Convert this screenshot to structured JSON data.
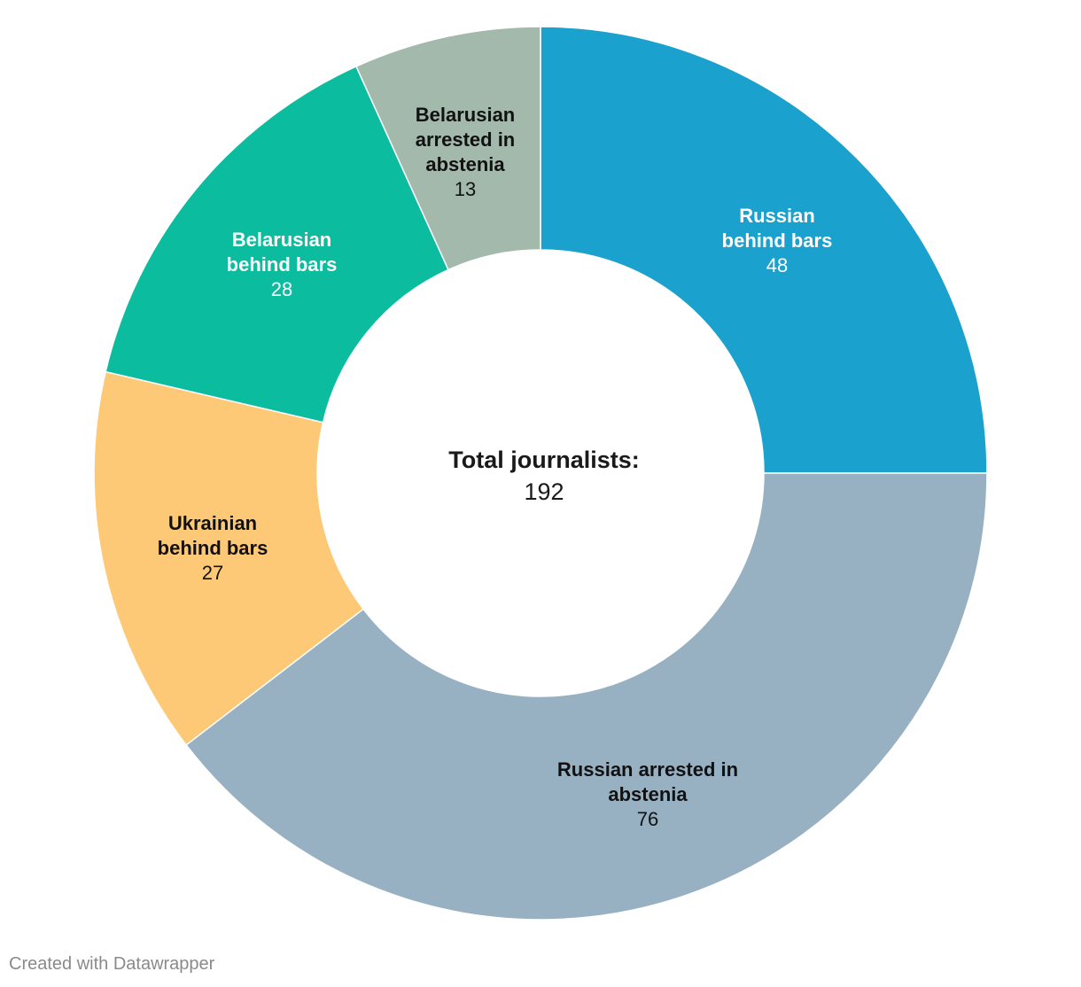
{
  "chart_data": {
    "type": "pie",
    "donut": true,
    "segments": [
      {
        "label_lines": [
          "Russian",
          "behind bars"
        ],
        "value": 48,
        "color": "#1aa1cd",
        "text_color": "#ffffff"
      },
      {
        "label_lines": [
          "Russian arrested in",
          "abstenia"
        ],
        "value": 76,
        "color": "#97b1c3",
        "text_color": "#111111"
      },
      {
        "label_lines": [
          "Ukrainian",
          "behind bars"
        ],
        "value": 27,
        "color": "#fdc976",
        "text_color": "#111111"
      },
      {
        "label_lines": [
          "Belarusian",
          "behind bars"
        ],
        "value": 28,
        "color": "#0bbc9f",
        "text_color": "#ffffff"
      },
      {
        "label_lines": [
          "Belarusian",
          "arrested in",
          "abstenia"
        ],
        "value": 13,
        "color": "#a3b9ab",
        "text_color": "#111111"
      }
    ],
    "center": {
      "title": "Total journalists:",
      "value": "192"
    }
  },
  "footer": {
    "credit": "Created with Datawrapper"
  }
}
